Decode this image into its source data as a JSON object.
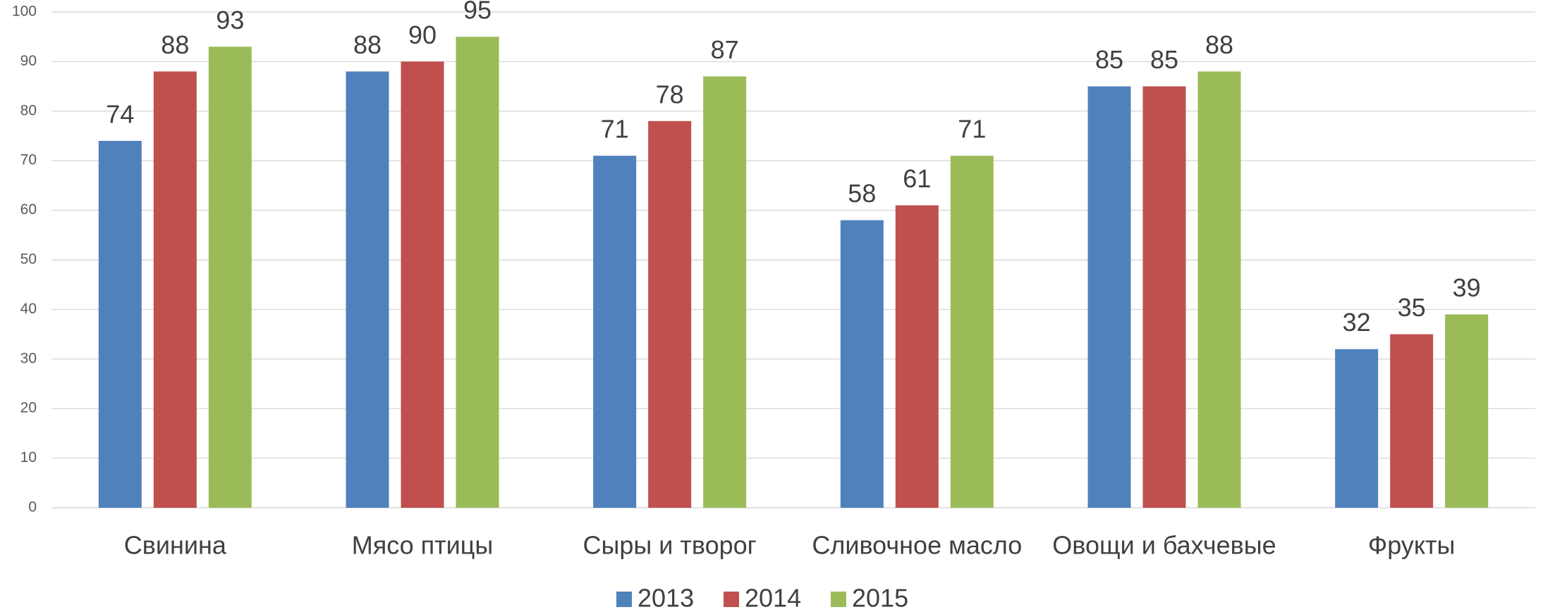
{
  "chart_data": {
    "type": "bar",
    "categories": [
      "Свинина",
      "Мясо птицы",
      "Сыры и творог",
      "Сливочное масло",
      "Овощи и бахчевые",
      "Фрукты"
    ],
    "series": [
      {
        "name": "2013",
        "color": "#4f81bd",
        "values": [
          74,
          88,
          71,
          58,
          85,
          32
        ]
      },
      {
        "name": "2014",
        "color": "#c0504d",
        "values": [
          88,
          90,
          78,
          61,
          85,
          35
        ]
      },
      {
        "name": "2015",
        "color": "#9bbb59",
        "values": [
          93,
          95,
          87,
          71,
          88,
          39
        ]
      }
    ],
    "ylim": [
      0,
      100
    ],
    "yticks": [
      0,
      10,
      20,
      30,
      40,
      50,
      60,
      70,
      80,
      90,
      100
    ],
    "grid": true,
    "legend": "bottom"
  }
}
